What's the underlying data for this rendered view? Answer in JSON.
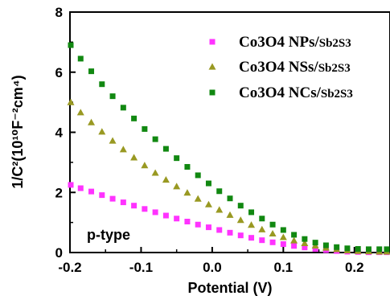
{
  "chart_data": {
    "type": "scatter",
    "xlabel": "Potential (V)",
    "ylabel": "1/C²(10¹⁰F⁻²cm⁴)",
    "xlim": [
      -0.2,
      0.25
    ],
    "ylim": [
      0,
      8
    ],
    "x_ticks": [
      "-0.2",
      "-0.1",
      "0.0",
      "0.1",
      "0.2"
    ],
    "y_ticks": [
      "0",
      "2",
      "4",
      "6",
      "8"
    ],
    "annotation": "p-type",
    "grid": false,
    "legend_position": "top-right",
    "series": [
      {
        "name": "Co3O4 NPs/Sb2S3",
        "name_main": "Co3O4 NPs/",
        "name_sub": "Sb2S3",
        "color": "#ff33ff",
        "marker": "square",
        "x": [
          -0.2,
          -0.185,
          -0.17,
          -0.155,
          -0.14,
          -0.125,
          -0.11,
          -0.095,
          -0.08,
          -0.065,
          -0.05,
          -0.035,
          -0.02,
          -0.005,
          0.01,
          0.025,
          0.04,
          0.055,
          0.07,
          0.085,
          0.1,
          0.115,
          0.13,
          0.145,
          0.16,
          0.175,
          0.19,
          0.205,
          0.22,
          0.235,
          0.25
        ],
        "y": [
          2.25,
          2.14,
          2.03,
          1.91,
          1.79,
          1.67,
          1.56,
          1.45,
          1.34,
          1.23,
          1.13,
          1.03,
          0.93,
          0.84,
          0.75,
          0.66,
          0.57,
          0.49,
          0.41,
          0.34,
          0.28,
          0.22,
          0.17,
          0.12,
          0.08,
          0.05,
          0.03,
          0.02,
          0.01,
          0.01,
          0.01
        ]
      },
      {
        "name": "Co3O4 NSs/Sb2S3",
        "name_main": "Co3O4 NSs/",
        "name_sub": "Sb2S3",
        "color": "#999922",
        "marker": "triangle",
        "x": [
          -0.2,
          -0.185,
          -0.17,
          -0.155,
          -0.14,
          -0.125,
          -0.11,
          -0.095,
          -0.08,
          -0.065,
          -0.05,
          -0.035,
          -0.02,
          -0.005,
          0.01,
          0.025,
          0.04,
          0.055,
          0.07,
          0.085,
          0.1,
          0.115,
          0.13,
          0.145,
          0.16,
          0.175,
          0.19,
          0.205,
          0.22,
          0.235,
          0.25
        ],
        "y": [
          5.0,
          4.66,
          4.33,
          4.02,
          3.72,
          3.43,
          3.16,
          2.9,
          2.65,
          2.42,
          2.2,
          1.99,
          1.79,
          1.6,
          1.42,
          1.25,
          1.08,
          0.92,
          0.77,
          0.63,
          0.51,
          0.4,
          0.31,
          0.23,
          0.16,
          0.11,
          0.07,
          0.05,
          0.04,
          0.03,
          0.03
        ]
      },
      {
        "name": "Co3O4 NCs/Sb2S3",
        "name_main": "Co3O4 NCs/",
        "name_sub": "Sb2S3",
        "color": "#118811",
        "marker": "square",
        "x": [
          -0.2,
          -0.185,
          -0.17,
          -0.155,
          -0.14,
          -0.125,
          -0.11,
          -0.095,
          -0.08,
          -0.065,
          -0.05,
          -0.035,
          -0.02,
          -0.005,
          0.01,
          0.025,
          0.04,
          0.055,
          0.07,
          0.085,
          0.1,
          0.115,
          0.13,
          0.145,
          0.16,
          0.175,
          0.19,
          0.205,
          0.22,
          0.235,
          0.25
        ],
        "y": [
          6.9,
          6.45,
          6.03,
          5.6,
          5.2,
          4.82,
          4.46,
          4.11,
          3.77,
          3.45,
          3.14,
          2.85,
          2.57,
          2.3,
          2.04,
          1.8,
          1.56,
          1.34,
          1.13,
          0.93,
          0.75,
          0.59,
          0.45,
          0.33,
          0.24,
          0.18,
          0.14,
          0.12,
          0.11,
          0.11,
          0.11
        ]
      }
    ]
  }
}
